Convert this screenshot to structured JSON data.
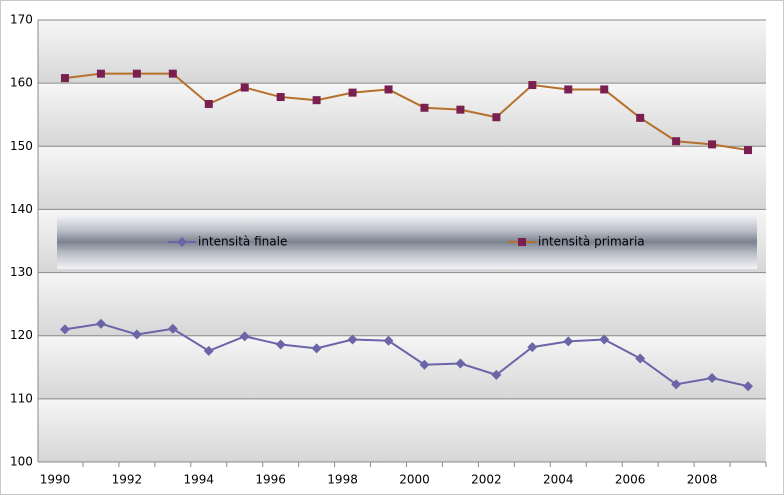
{
  "chart_data": {
    "type": "line",
    "categories": [
      "1990",
      null,
      "1992",
      null,
      "1994",
      null,
      "1996",
      null,
      "1998",
      null,
      "2000",
      null,
      "2002",
      null,
      "2004",
      null,
      "2006",
      null,
      "2008",
      null
    ],
    "series": [
      {
        "name": "intensità finale",
        "color": "#6b65a8",
        "marker": "diamond",
        "marker_color": "#6b65a8",
        "values": [
          121.0,
          121.9,
          120.2,
          121.1,
          117.6,
          119.9,
          118.6,
          118.0,
          119.4,
          119.2,
          115.4,
          115.6,
          113.8,
          118.2,
          119.1,
          119.4,
          116.4,
          112.3,
          113.3,
          112.0
        ]
      },
      {
        "name": "intensità primaria",
        "color": "#b5712c",
        "marker": "square",
        "marker_color": "#7a2050",
        "values": [
          160.8,
          161.5,
          161.5,
          161.5,
          156.7,
          159.3,
          157.8,
          157.3,
          158.5,
          159.0,
          156.1,
          155.8,
          154.6,
          159.7,
          159.0,
          159.0,
          154.5,
          150.8,
          150.3,
          149.4
        ]
      }
    ],
    "ylim": [
      100,
      170
    ],
    "yticks": [
      100,
      110,
      120,
      130,
      140,
      150,
      160,
      170
    ],
    "grid": true,
    "legend": "center"
  }
}
